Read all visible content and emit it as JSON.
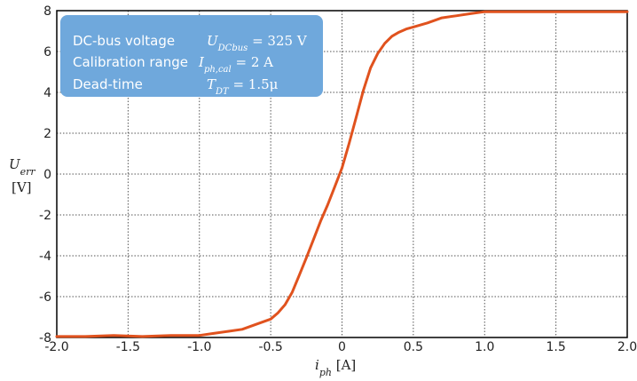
{
  "chart_data": {
    "type": "line",
    "xlabel": {
      "sym": "i",
      "sub": "ph",
      "unit": " [A]"
    },
    "ylabel": {
      "sym": "U",
      "sub": "err",
      "unit": "[V]"
    },
    "xlim": [
      -2.0,
      2.0
    ],
    "ylim": [
      -8,
      8
    ],
    "xticks": [
      "-2.0",
      "-1.5",
      "-1.0",
      "-0.5",
      "0",
      "0.5",
      "1.0",
      "1.5",
      "2.0"
    ],
    "yticks": [
      "-8",
      "-6",
      "-4",
      "-2",
      "0",
      "2",
      "4",
      "6",
      "8"
    ],
    "grid": true,
    "line_color": "#e0521e",
    "annotation": {
      "background": "#6fa8dc",
      "position": "top-left",
      "rows": [
        {
          "label": "DC-bus voltage",
          "value": "U_DCbus = 325 V"
        },
        {
          "label": "Calibration range",
          "value": "I_ph,cal = 2 A"
        },
        {
          "label": "Dead-time",
          "value": "T_DT = 1.5μ"
        }
      ]
    },
    "series": [
      {
        "x": [
          -2.0,
          -1.8,
          -1.6,
          -1.4,
          -1.2,
          -1.0,
          -0.9,
          -0.8,
          -0.7,
          -0.6,
          -0.5,
          -0.45,
          -0.4,
          -0.35,
          -0.3,
          -0.25,
          -0.2,
          -0.15,
          -0.1,
          -0.05,
          0.0,
          0.05,
          0.1,
          0.15,
          0.2,
          0.25,
          0.3,
          0.35,
          0.4,
          0.45,
          0.5,
          0.6,
          0.7,
          0.8,
          0.9,
          1.0,
          1.2,
          1.4,
          1.6,
          1.8,
          2.0
        ],
        "y": [
          -7.95,
          -7.95,
          -7.9,
          -7.95,
          -7.9,
          -7.9,
          -7.8,
          -7.7,
          -7.6,
          -7.35,
          -7.1,
          -6.8,
          -6.4,
          -5.8,
          -4.95,
          -4.1,
          -3.2,
          -2.3,
          -1.5,
          -0.6,
          0.3,
          1.5,
          2.8,
          4.1,
          5.2,
          5.9,
          6.4,
          6.75,
          6.95,
          7.1,
          7.2,
          7.4,
          7.65,
          7.75,
          7.85,
          7.95,
          7.95,
          7.95,
          7.95,
          7.95,
          7.95
        ]
      }
    ]
  }
}
